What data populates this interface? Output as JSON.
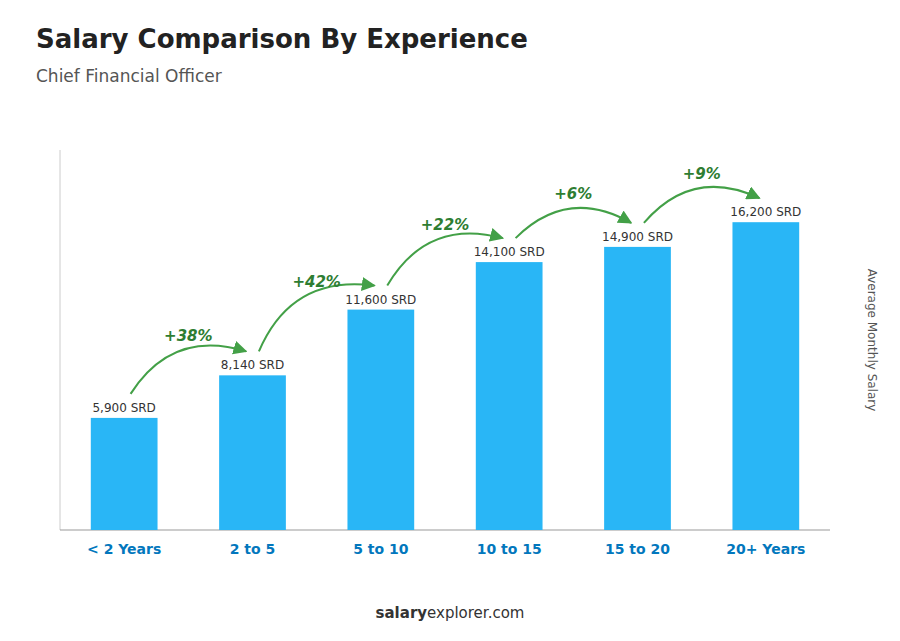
{
  "chart_data": {
    "type": "bar",
    "title": "Salary Comparison By Experience",
    "subtitle": "Chief Financial Officer",
    "ylabel": "Average Monthly Salary",
    "categories": [
      "< 2 Years",
      "2 to 5",
      "5 to 10",
      "10 to 15",
      "15 to 20",
      "20+ Years"
    ],
    "values": [
      5900,
      8140,
      11600,
      14100,
      14900,
      16200
    ],
    "value_labels": [
      "5,900 SRD",
      "8,140 SRD",
      "11,600 SRD",
      "14,100 SRD",
      "14,900 SRD",
      "16,200 SRD"
    ],
    "data_labels": true,
    "annotations": [
      "+38%",
      "+42%",
      "+22%",
      "+6%",
      "+9%"
    ],
    "footer": [
      "salary",
      "explorer.com"
    ],
    "color": "#29b6f6",
    "ylim": [
      0,
      20000
    ],
    "tick_labels": false,
    "grid": false
  }
}
